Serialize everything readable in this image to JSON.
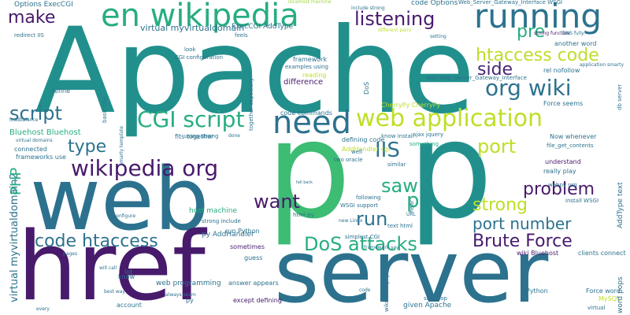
{
  "words": [
    {
      "text": "Apache",
      "color": "#21908d"
    },
    {
      "text": "web",
      "color": "#2c728e"
    },
    {
      "text": "href",
      "color": "#481a6c"
    },
    {
      "text": "server",
      "color": "#2c728e"
    },
    {
      "text": "p",
      "color": "#3dbc74"
    },
    {
      "text": "p",
      "color": "#21908d"
    },
    {
      "text": "en wikipedia",
      "color": "#27ad81"
    },
    {
      "text": "running",
      "color": "#2c728e"
    },
    {
      "text": "need",
      "color": "#2c728e"
    },
    {
      "text": "web application",
      "color": "#bddf26"
    },
    {
      "text": "wikipedia org",
      "color": "#481a6c"
    },
    {
      "text": "CGI script",
      "color": "#27ad81"
    },
    {
      "text": "org wiki",
      "color": "#2c728e"
    },
    {
      "text": "htaccess code",
      "color": "#bddf26"
    },
    {
      "text": "listening",
      "color": "#481a6c"
    },
    {
      "text": "make",
      "color": "#481a6c"
    },
    {
      "text": "pre",
      "color": "#27ad81"
    },
    {
      "text": "side",
      "color": "#482576"
    },
    {
      "text": "script",
      "color": "#2c728e"
    },
    {
      "text": "IIS",
      "color": "#2c728e"
    },
    {
      "text": "port",
      "color": "#bddf26"
    },
    {
      "text": "want",
      "color": "#481a6c"
    },
    {
      "text": "type",
      "color": "#2c728e"
    },
    {
      "text": "saw",
      "color": "#27ad81"
    },
    {
      "text": "p",
      "color": "#27ad81"
    },
    {
      "text": "run",
      "color": "#2c728e"
    },
    {
      "text": "problem",
      "color": "#481a6c"
    },
    {
      "text": "strong",
      "color": "#bddf26"
    },
    {
      "text": "port number",
      "color": "#2c728e"
    },
    {
      "text": "code htaccess",
      "color": "#2c728e"
    },
    {
      "text": "DoS attacks",
      "color": "#27ad81"
    },
    {
      "text": "Brute Force",
      "color": "#481a6c"
    },
    {
      "text": "PHP",
      "color": "#27ad81"
    },
    {
      "text": "virtual myvirtualdomain2",
      "color": "#2c728e"
    },
    {
      "text": "Options ExecCGI",
      "color": "#2c728e"
    },
    {
      "text": "localhost machine",
      "color": "#9bd93c"
    },
    {
      "text": "include strong",
      "color": "#2c728e"
    },
    {
      "text": "code Options",
      "color": "#2c728e"
    },
    {
      "text": "Web_Server_Gateway_Interface WSGI",
      "color": "#2c728e"
    },
    {
      "text": "virtual myvirtualdomain",
      "color": "#2c728e"
    },
    {
      "text": "ExecCGI AddType",
      "color": "#2c728e"
    },
    {
      "text": "CGI configuration",
      "color": "#2c728e"
    },
    {
      "text": "framework",
      "color": "#2c728e"
    },
    {
      "text": "reading",
      "color": "#bddf26"
    },
    {
      "text": "difference",
      "color": "#481a6c"
    },
    {
      "text": "Bluehost Bluehost",
      "color": "#27ad81"
    },
    {
      "text": "connected",
      "color": "#2c728e"
    },
    {
      "text": "frameworks use",
      "color": "#2c728e"
    },
    {
      "text": "code commands",
      "color": "#2c728e"
    },
    {
      "text": "defining code",
      "color": "#2c728e"
    },
    {
      "text": "AddHandler cgi",
      "color": "#bddf26"
    },
    {
      "text": "something",
      "color": "#27ad81"
    },
    {
      "text": "Now whenever",
      "color": "#2c728e"
    },
    {
      "text": "really play",
      "color": "#2c728e"
    },
    {
      "text": "understand",
      "color": "#481a6c"
    },
    {
      "text": "Force seems",
      "color": "#2c728e"
    },
    {
      "text": "another word",
      "color": "#2c728e"
    },
    {
      "text": "rel nofollow",
      "color": "#2c728e"
    },
    {
      "text": "host machine",
      "color": "#27ad81"
    },
    {
      "text": "run Python",
      "color": "#2c728e"
    },
    {
      "text": "sometimes",
      "color": "#481a6c"
    },
    {
      "text": "guess",
      "color": "#2c728e"
    },
    {
      "text": "py AddHandler",
      "color": "#2c728e"
    },
    {
      "text": "install WSGI",
      "color": "#2c728e"
    },
    {
      "text": "wiki Bluehost",
      "color": "#481a6c"
    },
    {
      "text": "web programming",
      "color": "#2c728e"
    },
    {
      "text": "except defining",
      "color": "#481a6c"
    },
    {
      "text": "given Apache",
      "color": "#2c728e"
    },
    {
      "text": "Python",
      "color": "#2c728e"
    },
    {
      "text": "Force word",
      "color": "#2c728e"
    },
    {
      "text": "MySQL",
      "color": "#bddf26"
    },
    {
      "text": "simplest CGI",
      "color": "#2c728e"
    },
    {
      "text": "WSGI support",
      "color": "#2c728e"
    },
    {
      "text": "html py",
      "color": "#2c728e"
    },
    {
      "text": "text html",
      "color": "#2c728e"
    },
    {
      "text": "following",
      "color": "#2c728e"
    },
    {
      "text": "account",
      "color": "#2c728e"
    },
    {
      "text": "lot",
      "color": "#2c728e"
    },
    {
      "text": "know",
      "color": "#2c728e"
    },
    {
      "text": "look",
      "color": "#2c728e"
    },
    {
      "text": "fits together",
      "color": "#2c728e"
    },
    {
      "text": "together especially",
      "color": "#2c728e"
    },
    {
      "text": "similar",
      "color": "#2c728e"
    },
    {
      "text": "hear",
      "color": "#2c728e"
    },
    {
      "text": "well",
      "color": "#2c728e"
    },
    {
      "text": "basic CGI",
      "color": "#2c728e"
    },
    {
      "text": "loadbalance",
      "color": "#2c728e"
    },
    {
      "text": "virtual domains",
      "color": "#2c728e"
    },
    {
      "text": "wiki Web_Server_Gateway_Interface",
      "color": "#2c728e"
    },
    {
      "text": "examples using",
      "color": "#2c728e"
    },
    {
      "text": "redirect IIS",
      "color": "#2c728e"
    },
    {
      "text": "ajax jquery",
      "color": "#2c728e"
    },
    {
      "text": "know install",
      "color": "#2c728e"
    },
    {
      "text": "CherryPy CherryPy",
      "color": "#bddf26"
    },
    {
      "text": "two oracle",
      "color": "#2c728e"
    },
    {
      "text": "word pops",
      "color": "#2c728e"
    },
    {
      "text": "AddType text",
      "color": "#2c728e"
    },
    {
      "text": "webpy org",
      "color": "#2c728e"
    },
    {
      "text": "file_get_contents",
      "color": "#2c728e"
    },
    {
      "text": "clients connect",
      "color": "#2c728e"
    },
    {
      "text": "strong include",
      "color": "#2c728e"
    },
    {
      "text": "wiki CherryPy",
      "color": "#2c728e"
    },
    {
      "text": "site stop",
      "color": "#2c728e"
    },
    {
      "text": "feels",
      "color": "#2c728e"
    },
    {
      "text": "define",
      "color": "#2c728e"
    },
    {
      "text": "using strong",
      "color": "#2c728e"
    },
    {
      "text": "done",
      "color": "#2c728e"
    },
    {
      "text": "configure",
      "color": "#2c728e"
    },
    {
      "text": "smarty template",
      "color": "#2c728e"
    },
    {
      "text": "framework say",
      "color": "#2c728e"
    },
    {
      "text": "new Linux",
      "color": "#2c728e"
    },
    {
      "text": "answer appears",
      "color": "#2c728e"
    },
    {
      "text": "best way",
      "color": "#2c728e"
    },
    {
      "text": "will call",
      "color": "#2c728e"
    },
    {
      "text": "always seem",
      "color": "#2c728e"
    },
    {
      "text": "application smarty",
      "color": "#2c728e"
    },
    {
      "text": "strong function",
      "color": "#481a6c"
    },
    {
      "text": "pages",
      "color": "#2c728e"
    },
    {
      "text": "py",
      "color": "#2c728e"
    },
    {
      "text": "fall back",
      "color": "#2c728e"
    },
    {
      "text": "code",
      "color": "#2c728e"
    },
    {
      "text": "virtual",
      "color": "#2c728e"
    },
    {
      "text": "every",
      "color": "#2c728e"
    },
    {
      "text": "DoS",
      "color": "#2c728e"
    },
    {
      "text": "different pairs",
      "color": "#bddf26"
    },
    {
      "text": "setting",
      "color": "#2c728e"
    },
    {
      "text": "URL",
      "color": "#2c728e"
    },
    {
      "text": "DNS fully",
      "color": "#2c728e"
    },
    {
      "text": "db server",
      "color": "#2c728e"
    }
  ]
}
